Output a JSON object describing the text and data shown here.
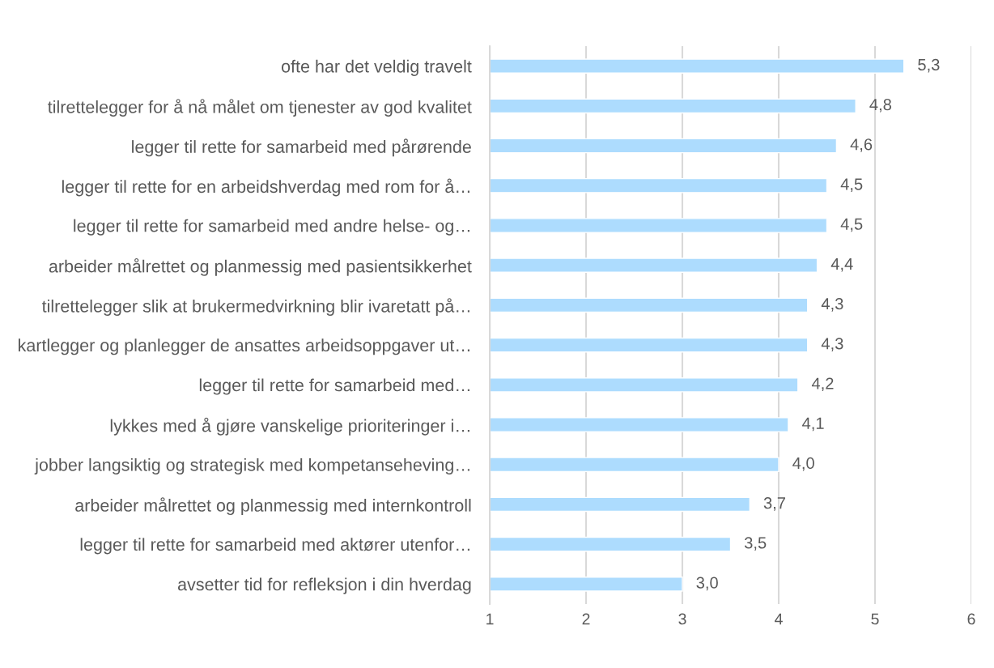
{
  "chart_data": {
    "type": "bar",
    "orientation": "horizontal",
    "categories": [
      "ofte har det veldig travelt",
      "tilrettelegger for å nå målet om tjenester av god kvalitet",
      "legger til rette for samarbeid med pårørende",
      "legger til rette for en arbeidshverdag med rom for å…",
      "legger til rette for samarbeid med andre helse- og…",
      "arbeider målrettet og planmessig med pasientsikkerhet",
      "tilrettelegger slik at brukermedvirkning blir ivaretatt på…",
      "kartlegger og planlegger de ansattes arbeidsoppgaver ut…",
      "legger til rette for samarbeid med…",
      "lykkes med å gjøre vanskelige prioriteringer i…",
      "jobber langsiktig og strategisk med kompetanseheving…",
      "arbeider målrettet og planmessig med internkontroll",
      "legger til rette for samarbeid med aktører utenfor…",
      "avsetter tid for refleksjon i din hverdag"
    ],
    "values": [
      5.3,
      4.8,
      4.6,
      4.5,
      4.5,
      4.4,
      4.3,
      4.3,
      4.2,
      4.1,
      4.0,
      3.7,
      3.5,
      3.0
    ],
    "value_labels": [
      "5,3",
      "4,8",
      "4,6",
      "4,5",
      "4,5",
      "4,4",
      "4,3",
      "4,3",
      "4,2",
      "4,1",
      "4,0",
      "3,7",
      "3,5",
      "3,0"
    ],
    "color": "#addcfe",
    "xlim": [
      1,
      6
    ],
    "xticks": [
      1,
      2,
      3,
      4,
      5,
      6
    ],
    "grid": "x"
  }
}
